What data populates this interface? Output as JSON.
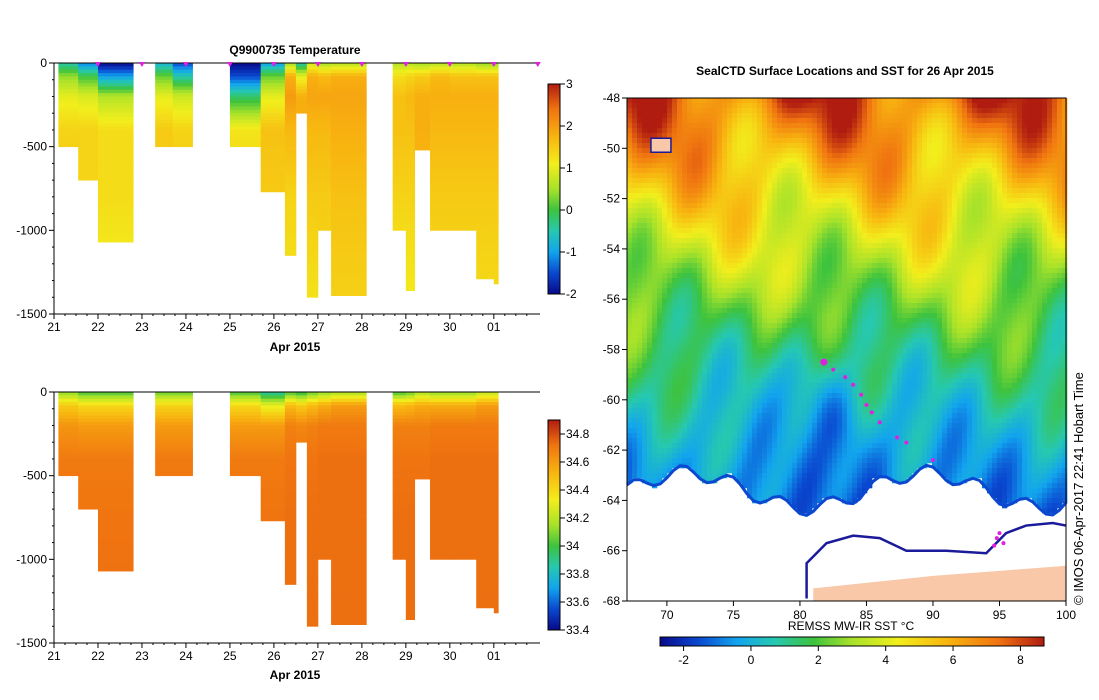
{
  "chart_data": [
    {
      "id": "temperature-section",
      "type": "heatmap",
      "title": "Q9900735  Temperature",
      "xlabel": "Apr 2015",
      "x_ticks": [
        "21",
        "22",
        "23",
        "24",
        "25",
        "26",
        "27",
        "28",
        "29",
        "30",
        "01"
      ],
      "xlim": [
        21,
        32.05
      ],
      "ylim": [
        0,
        -1500
      ],
      "y_ticks": [
        0,
        -500,
        -1000,
        -1500
      ],
      "colorbar": {
        "min": -2,
        "max": 3,
        "ticks": [
          "3",
          "2",
          "1",
          "0",
          "-1",
          "-2"
        ]
      },
      "profile_days": [
        22.0,
        23.0,
        24.0,
        25.0,
        26.0,
        27.0,
        28.0,
        29.0,
        30.0,
        31.0,
        32.0
      ],
      "profiles": [
        {
          "x0": 21.1,
          "x1": 21.55,
          "depth": 500,
          "vals": [
            -0.5,
            0.4,
            1.0,
            1.4,
            1.5,
            1.5
          ]
        },
        {
          "x0": 21.55,
          "x1": 22.0,
          "depth": 700,
          "vals": [
            -1.2,
            0.0,
            0.9,
            1.4,
            1.4,
            1.3
          ]
        },
        {
          "x0": 22.0,
          "x1": 22.8,
          "depth": 1070,
          "vals": [
            -2.0,
            -1.0,
            0.6,
            1.3,
            1.3,
            1.0
          ]
        },
        {
          "x0": 23.3,
          "x1": 23.7,
          "depth": 500,
          "vals": [
            -0.8,
            0.2,
            1.0,
            1.5,
            1.5,
            1.5
          ]
        },
        {
          "x0": 23.7,
          "x1": 24.15,
          "depth": 500,
          "vals": [
            -1.5,
            -0.5,
            0.8,
            1.4,
            1.5,
            1.5
          ]
        },
        {
          "x0": 25.0,
          "x1": 25.7,
          "depth": 500,
          "vals": [
            -2.0,
            -1.5,
            -0.2,
            1.2,
            1.5,
            1.5
          ]
        },
        {
          "x0": 25.7,
          "x1": 26.25,
          "depth": 770,
          "vals": [
            -1.0,
            0.2,
            1.0,
            1.6,
            1.5,
            1.3
          ]
        },
        {
          "x0": 26.25,
          "x1": 26.5,
          "depth": 1150,
          "vals": [
            0.5,
            1.8,
            2.0,
            1.7,
            1.4,
            1.2
          ]
        },
        {
          "x0": 26.5,
          "x1": 26.75,
          "depth": 300,
          "vals": [
            -0.5,
            1.0,
            1.8,
            1.8,
            1.7,
            1.7
          ]
        },
        {
          "x0": 26.75,
          "x1": 27.0,
          "depth": 1400,
          "vals": [
            0.8,
            1.8,
            1.9,
            1.7,
            1.5,
            1.2
          ]
        },
        {
          "x0": 27.0,
          "x1": 27.3,
          "depth": 1000,
          "vals": [
            0.5,
            1.7,
            1.9,
            1.7,
            1.5,
            1.3
          ]
        },
        {
          "x0": 27.3,
          "x1": 28.1,
          "depth": 1390,
          "vals": [
            0.6,
            1.8,
            1.9,
            1.8,
            1.6,
            1.4
          ]
        },
        {
          "x0": 28.7,
          "x1": 29.0,
          "depth": 1000,
          "vals": [
            0.6,
            1.3,
            1.6,
            1.6,
            1.4,
            1.1
          ]
        },
        {
          "x0": 29.0,
          "x1": 29.2,
          "depth": 1360,
          "vals": [
            0.6,
            1.4,
            1.7,
            1.6,
            1.4,
            1.1
          ]
        },
        {
          "x0": 29.2,
          "x1": 29.55,
          "depth": 520,
          "vals": [
            0.5,
            1.5,
            1.8,
            1.8,
            1.7,
            1.7
          ]
        },
        {
          "x0": 29.55,
          "x1": 30.0,
          "depth": 1000,
          "vals": [
            0.6,
            1.7,
            1.8,
            1.7,
            1.5,
            1.3
          ]
        },
        {
          "x0": 30.0,
          "x1": 30.6,
          "depth": 1000,
          "vals": [
            0.6,
            1.6,
            1.8,
            1.7,
            1.5,
            1.3
          ]
        },
        {
          "x0": 30.6,
          "x1": 31.0,
          "depth": 1290,
          "vals": [
            0.4,
            1.6,
            1.8,
            1.7,
            1.5,
            1.3
          ]
        },
        {
          "x0": 31.0,
          "x1": 31.1,
          "depth": 1320,
          "vals": [
            0.4,
            1.6,
            1.8,
            1.7,
            1.5,
            1.3
          ]
        }
      ]
    },
    {
      "id": "salinity-section",
      "type": "heatmap",
      "title": "",
      "xlabel": "Apr 2015",
      "x_ticks": [
        "21",
        "22",
        "23",
        "24",
        "25",
        "26",
        "27",
        "28",
        "29",
        "30",
        "01"
      ],
      "xlim": [
        21,
        32.05
      ],
      "ylim": [
        0,
        -1500
      ],
      "y_ticks": [
        0,
        -500,
        -1000,
        -1500
      ],
      "colorbar": {
        "min": 33.4,
        "max": 34.9,
        "ticks": [
          "34.8",
          "34.6",
          "34.4",
          "34.2",
          "34",
          "33.8",
          "33.6",
          "33.4"
        ]
      },
      "profiles": [
        {
          "x0": 21.1,
          "x1": 21.55,
          "depth": 500,
          "vals": [
            34.1,
            34.45,
            34.62,
            34.7,
            34.72,
            34.73
          ]
        },
        {
          "x0": 21.55,
          "x1": 22.0,
          "depth": 700,
          "vals": [
            34.0,
            34.4,
            34.6,
            34.7,
            34.72,
            34.73
          ]
        },
        {
          "x0": 22.0,
          "x1": 22.8,
          "depth": 1070,
          "vals": [
            34.0,
            34.4,
            34.6,
            34.7,
            34.72,
            34.73
          ]
        },
        {
          "x0": 23.3,
          "x1": 23.7,
          "depth": 500,
          "vals": [
            34.05,
            34.42,
            34.6,
            34.7,
            34.72,
            34.73
          ]
        },
        {
          "x0": 23.7,
          "x1": 24.15,
          "depth": 500,
          "vals": [
            34.05,
            34.42,
            34.6,
            34.7,
            34.72,
            34.73
          ]
        },
        {
          "x0": 25.0,
          "x1": 25.7,
          "depth": 500,
          "vals": [
            34.0,
            34.4,
            34.6,
            34.7,
            34.72,
            34.73
          ]
        },
        {
          "x0": 25.7,
          "x1": 26.25,
          "depth": 770,
          "vals": [
            33.85,
            34.3,
            34.6,
            34.7,
            34.72,
            34.73
          ]
        },
        {
          "x0": 26.25,
          "x1": 26.5,
          "depth": 1150,
          "vals": [
            34.0,
            34.5,
            34.68,
            34.72,
            34.73,
            34.73
          ]
        },
        {
          "x0": 26.5,
          "x1": 26.75,
          "depth": 300,
          "vals": [
            33.95,
            34.45,
            34.66,
            34.72,
            34.73,
            34.73
          ]
        },
        {
          "x0": 26.75,
          "x1": 27.0,
          "depth": 1400,
          "vals": [
            34.05,
            34.5,
            34.68,
            34.72,
            34.73,
            34.73
          ]
        },
        {
          "x0": 27.0,
          "x1": 27.3,
          "depth": 1000,
          "vals": [
            34.1,
            34.55,
            34.7,
            34.73,
            34.73,
            34.73
          ]
        },
        {
          "x0": 27.3,
          "x1": 28.1,
          "depth": 1390,
          "vals": [
            34.15,
            34.6,
            34.7,
            34.73,
            34.73,
            34.73
          ]
        },
        {
          "x0": 28.7,
          "x1": 29.0,
          "depth": 1000,
          "vals": [
            34.0,
            34.5,
            34.68,
            34.72,
            34.73,
            34.73
          ]
        },
        {
          "x0": 29.0,
          "x1": 29.2,
          "depth": 1360,
          "vals": [
            34.05,
            34.52,
            34.68,
            34.72,
            34.73,
            34.73
          ]
        },
        {
          "x0": 29.2,
          "x1": 29.55,
          "depth": 520,
          "vals": [
            34.15,
            34.55,
            34.68,
            34.72,
            34.73,
            34.73
          ]
        },
        {
          "x0": 29.55,
          "x1": 30.0,
          "depth": 1000,
          "vals": [
            34.1,
            34.55,
            34.7,
            34.73,
            34.73,
            34.73
          ]
        },
        {
          "x0": 30.0,
          "x1": 30.6,
          "depth": 1000,
          "vals": [
            34.1,
            34.55,
            34.7,
            34.73,
            34.73,
            34.73
          ]
        },
        {
          "x0": 30.6,
          "x1": 31.0,
          "depth": 1290,
          "vals": [
            34.2,
            34.6,
            34.7,
            34.73,
            34.73,
            34.73
          ]
        },
        {
          "x0": 31.0,
          "x1": 31.1,
          "depth": 1320,
          "vals": [
            34.2,
            34.6,
            34.7,
            34.73,
            34.73,
            34.73
          ]
        }
      ]
    },
    {
      "id": "sst-map",
      "type": "heatmap",
      "title": "SealCTD Surface Locations and SST for 26 Apr 2015",
      "colorbar_label": "REMSS MW-IR SST °C",
      "xlim": [
        67,
        100
      ],
      "ylim": [
        -68,
        -48
      ],
      "x_ticks": [
        "70",
        "75",
        "80",
        "85",
        "90",
        "95",
        "100"
      ],
      "y_ticks": [
        "-48",
        "-50",
        "-52",
        "-54",
        "-56",
        "-58",
        "-60",
        "-62",
        "-64",
        "-66",
        "-68"
      ],
      "colorbar": {
        "min": -2.7,
        "max": 8.7,
        "ticks": [
          "-2",
          "0",
          "2",
          "4",
          "6",
          "8"
        ]
      },
      "seal_track": [
        {
          "lon": 81.8,
          "lat": -58.5
        },
        {
          "lon": 82.5,
          "lat": -58.8
        },
        {
          "lon": 83.4,
          "lat": -59.1
        },
        {
          "lon": 84.0,
          "lat": -59.4
        },
        {
          "lon": 84.6,
          "lat": -59.8
        },
        {
          "lon": 85.0,
          "lat": -60.2
        },
        {
          "lon": 85.4,
          "lat": -60.5
        },
        {
          "lon": 86.0,
          "lat": -60.9
        },
        {
          "lon": 87.3,
          "lat": -61.5
        },
        {
          "lon": 88.0,
          "lat": -61.7
        },
        {
          "lon": 90.0,
          "lat": -62.4
        },
        {
          "lon": 94.8,
          "lat": -65.5
        },
        {
          "lon": 95.0,
          "lat": -65.3
        },
        {
          "lon": 95.3,
          "lat": -65.7
        },
        {
          "lon": 94.6,
          "lat": -65.8
        }
      ]
    }
  ],
  "credit": "© IMOS 06-Apr-2017 22:41 Hobart Time",
  "colors": {
    "marker": "#e020e0",
    "land": "#f8c8a8",
    "coast": "#1a1a9a"
  }
}
